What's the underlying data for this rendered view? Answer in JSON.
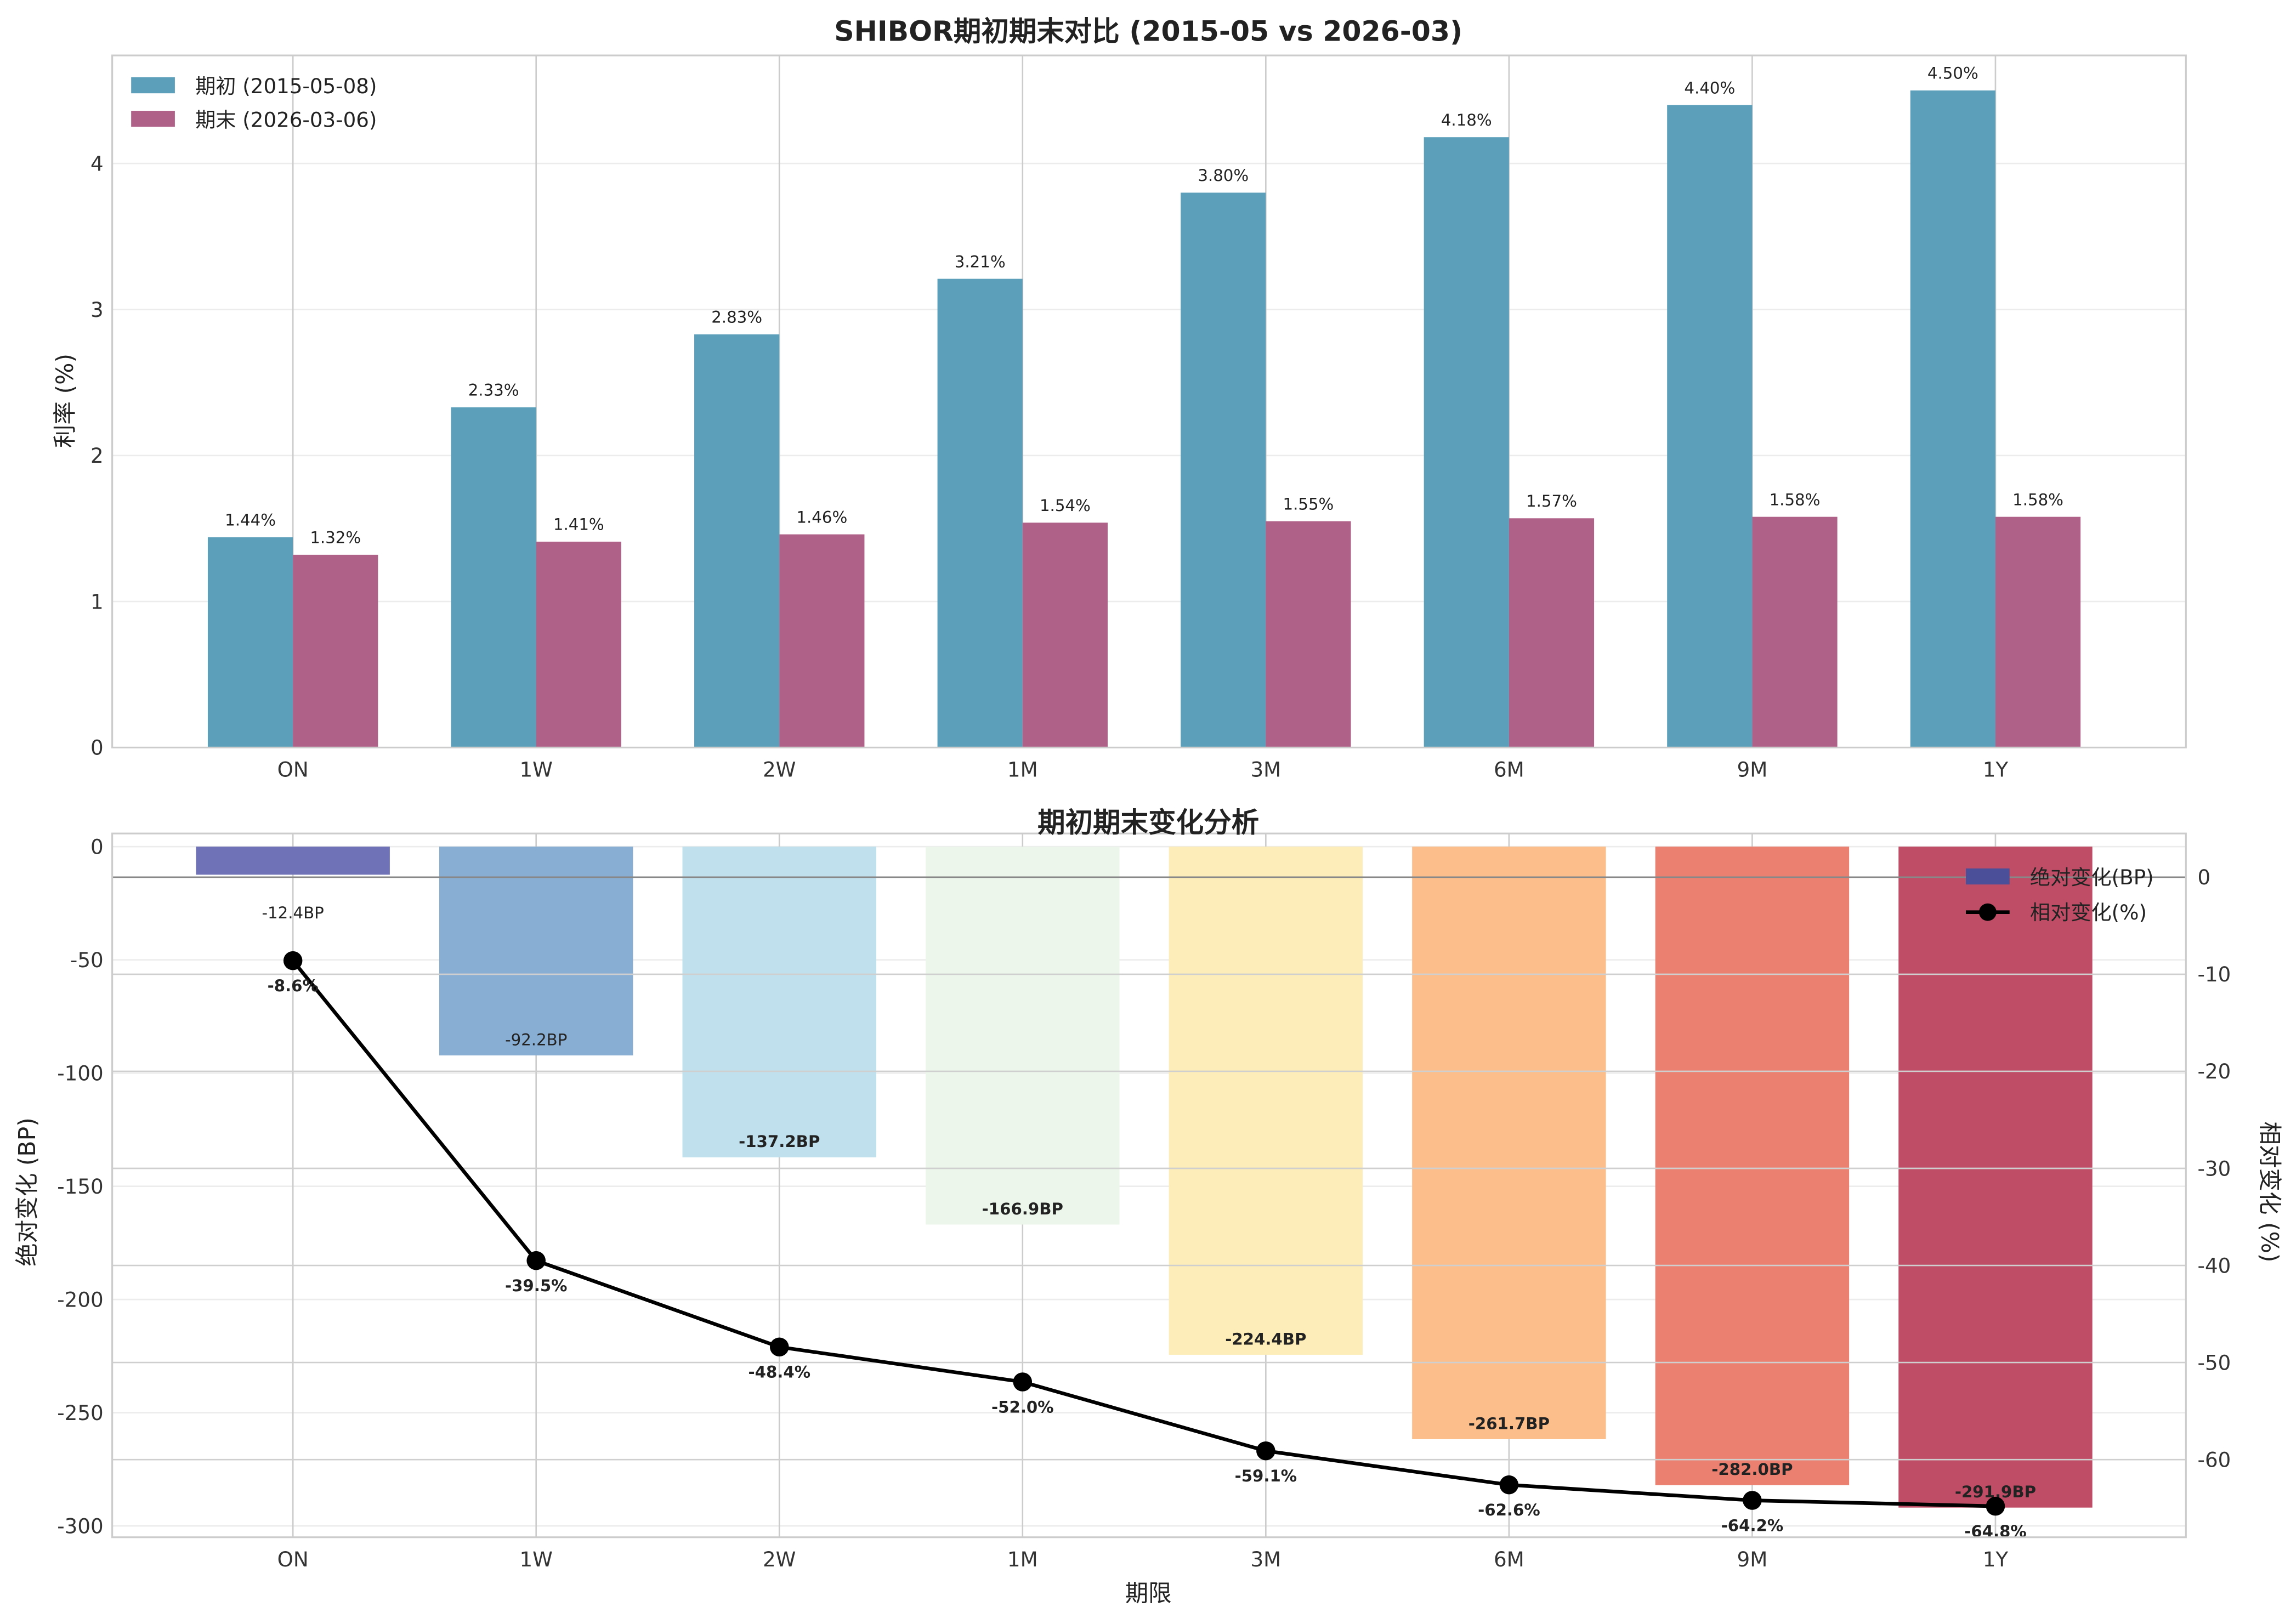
{
  "chart_data": [
    {
      "type": "bar",
      "title": "SHIBOR期初期末对比 (2015-05 vs 2026-03)",
      "xlabel": "",
      "ylabel": "利率 (%)",
      "ylim": [
        0,
        4.74
      ],
      "yticks": [
        0,
        1,
        2,
        3,
        4
      ],
      "grid": true,
      "legend_placement": "upper-left",
      "categories": [
        "ON",
        "1W",
        "2W",
        "1M",
        "3M",
        "6M",
        "9M",
        "1Y"
      ],
      "series": [
        {
          "name": "期初 (2015-05-08)",
          "color": "#5b9fbb",
          "values": [
            1.44,
            2.33,
            2.83,
            3.21,
            3.8,
            4.18,
            4.4,
            4.5
          ],
          "labels": [
            "1.44%",
            "2.33%",
            "2.83%",
            "3.21%",
            "3.80%",
            "4.18%",
            "4.40%",
            "4.50%"
          ]
        },
        {
          "name": "期末 (2026-03-06)",
          "color": "#b06188",
          "values": [
            1.32,
            1.41,
            1.46,
            1.54,
            1.55,
            1.57,
            1.58,
            1.58
          ],
          "labels": [
            "1.32%",
            "1.41%",
            "1.46%",
            "1.54%",
            "1.55%",
            "1.57%",
            "1.58%",
            "1.58%"
          ]
        }
      ]
    },
    {
      "type": "bar+line",
      "title": "期初期末变化分析",
      "xlabel": "期限",
      "ylabel": "绝对变化 (BP)",
      "ylabel_right": "相对变化 (%)",
      "ylim": [
        -305,
        5.8
      ],
      "ylim_right": [
        -68,
        4.5
      ],
      "yticks": [
        0,
        -50,
        -100,
        -150,
        -200,
        -250,
        -300
      ],
      "yticks_right": [
        0,
        -10,
        -20,
        -30,
        -40,
        -50,
        -60
      ],
      "grid": true,
      "legend_placement": "upper-right",
      "categories": [
        "ON",
        "1W",
        "2W",
        "1M",
        "3M",
        "6M",
        "9M",
        "1Y"
      ],
      "bar_series": {
        "name": "绝对变化(BP)",
        "legend_color": "#4b4f9a",
        "values": [
          -12.4,
          -92.2,
          -137.2,
          -166.9,
          -224.4,
          -261.7,
          -282.0,
          -291.9
        ],
        "labels": [
          "-12.4BP",
          "-92.2BP",
          "-137.2BP",
          "-166.9BP",
          "-224.4BP",
          "-261.7BP",
          "-282.0BP",
          "-291.9BP"
        ],
        "colors": [
          "#6f72b6",
          "#89aed3",
          "#bfe0ec",
          "#ecf6eb",
          "#fdedb8",
          "#fcbf8c",
          "#eb8070",
          "#bf4d66"
        ]
      },
      "line_series": {
        "name": "相对变化(%)",
        "color": "#000000",
        "values": [
          -8.6,
          -39.5,
          -48.4,
          -52.0,
          -59.1,
          -62.6,
          -64.2,
          -64.8
        ],
        "labels": [
          "-8.6%",
          "-39.5%",
          "-48.4%",
          "-52.0%",
          "-59.1%",
          "-62.6%",
          "-64.2%",
          "-64.8%"
        ]
      }
    }
  ]
}
